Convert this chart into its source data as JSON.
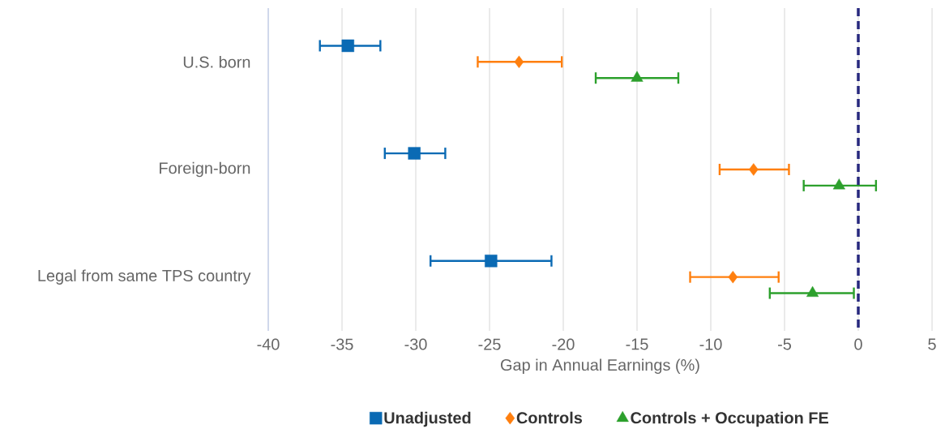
{
  "chart_data": {
    "type": "scatter",
    "orientation": "horizontal",
    "categories": [
      "U.S. born",
      "Foreign-born",
      "Legal from same TPS country"
    ],
    "series": [
      {
        "name": "Unadjusted",
        "color": "#0a6ab4",
        "marker": "square",
        "values": [
          -34.6,
          -30.1,
          -24.9
        ],
        "errors": [
          [
            -36.5,
            -32.4
          ],
          [
            -32.1,
            -28.0
          ],
          [
            -29.0,
            -20.8
          ]
        ]
      },
      {
        "name": "Controls",
        "color": "#ff7f0e",
        "marker": "diamond",
        "values": [
          -23.0,
          -7.1,
          -8.5
        ],
        "errors": [
          [
            -25.8,
            -20.1
          ],
          [
            -9.4,
            -4.7
          ],
          [
            -11.4,
            -5.4
          ]
        ]
      },
      {
        "name": "Controls + Occupation FE",
        "color": "#2ca02c",
        "marker": "triangle",
        "values": [
          -15.0,
          -1.3,
          -3.1
        ],
        "errors": [
          [
            -17.8,
            -12.2
          ],
          [
            -3.7,
            1.2
          ],
          [
            -6.0,
            -0.3
          ]
        ]
      }
    ],
    "xlabel": "Gap in Annual Earnings (%)",
    "xlim": [
      -40,
      5
    ],
    "xticks": [
      -40,
      -35,
      -30,
      -25,
      -20,
      -15,
      -10,
      -5,
      0,
      5
    ],
    "ref_lines": [
      {
        "axis": "x",
        "value": 0,
        "color": "#27287e",
        "line_style": "dashed"
      }
    ],
    "grid": "x",
    "legend": "bottom"
  }
}
